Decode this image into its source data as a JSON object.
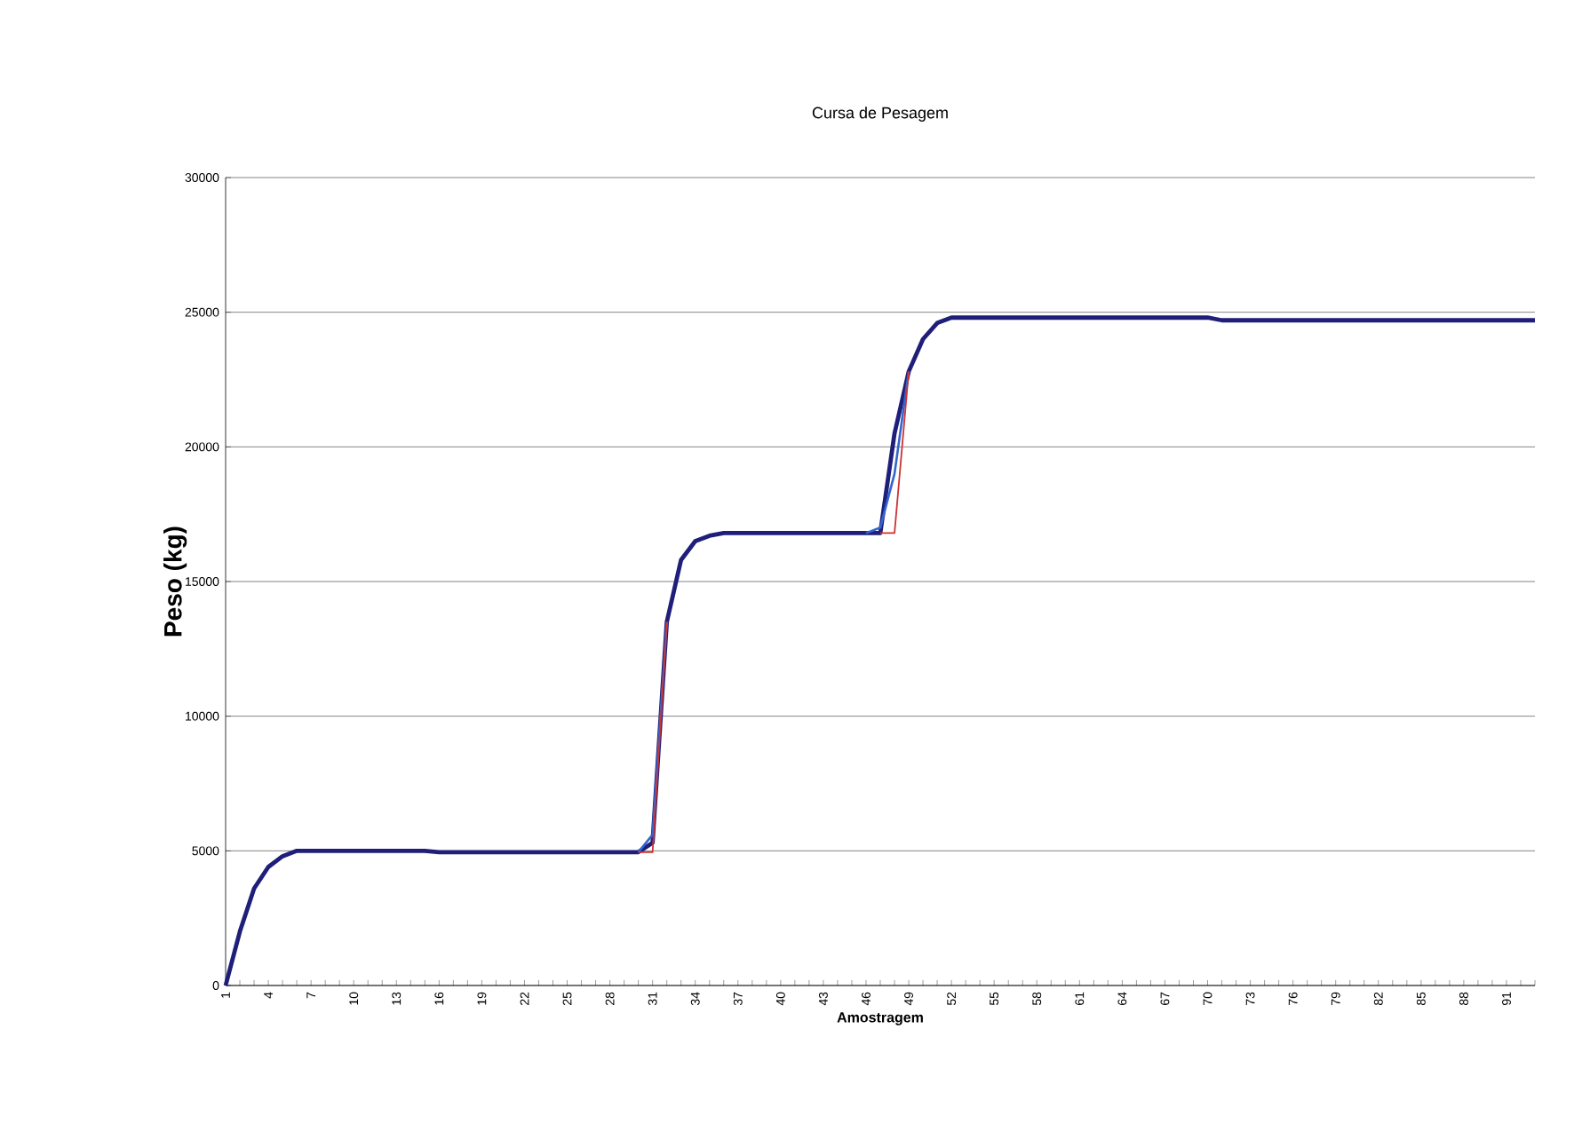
{
  "chart_data": {
    "type": "line",
    "title": "Cursa de Pesagem",
    "xlabel": "Amostragem",
    "ylabel": "Peso (kg)",
    "categories": [
      "1",
      null,
      null,
      "4",
      null,
      null,
      "7",
      null,
      null,
      "10",
      null,
      null,
      "13",
      null,
      null,
      "16",
      null,
      null,
      "19",
      null,
      null,
      "22",
      null,
      null,
      "25",
      null,
      null,
      "28",
      null,
      null,
      "31",
      null,
      null,
      "34",
      null,
      null,
      "37",
      null,
      null,
      "40",
      null,
      null,
      "43",
      null,
      null,
      "46",
      null,
      null,
      "49",
      null,
      null,
      "52",
      null,
      null,
      "55",
      null,
      null,
      "58",
      null,
      null,
      "61",
      null,
      null,
      "64",
      null,
      null,
      "67",
      null,
      null,
      "70",
      null,
      null,
      "73",
      null,
      null,
      "76",
      null,
      null,
      "79",
      null,
      null,
      "82",
      null,
      null,
      "85",
      null,
      null,
      "88",
      null,
      null,
      "91",
      null,
      null
    ],
    "series": [
      {
        "color": "#1f1f7a",
        "values": [
          0,
          2000,
          3600,
          4400,
          4800,
          5000,
          5000,
          5000,
          5000,
          5000,
          5000,
          5000,
          5000,
          5000,
          5000,
          4950,
          4950,
          4950,
          4950,
          4950,
          4950,
          4950,
          4950,
          4950,
          4950,
          4950,
          4950,
          4950,
          4950,
          4950,
          5300,
          13500,
          15800,
          16500,
          16700,
          16800,
          16800,
          16800,
          16800,
          16800,
          16800,
          16800,
          16800,
          16800,
          16800,
          16800,
          16800,
          20500,
          22800,
          24000,
          24600,
          24800,
          24800,
          24800,
          24800,
          24800,
          24800,
          24800,
          24800,
          24800,
          24800,
          24800,
          24800,
          24800,
          24800,
          24800,
          24800,
          24800,
          24800,
          24800,
          24700,
          24700,
          24700,
          24700,
          24700,
          24700,
          24700,
          24700,
          24700,
          24700,
          24700,
          24700,
          24700,
          24700,
          24700,
          24700,
          24700,
          24700,
          24700,
          24700,
          24700,
          24700,
          24700
        ]
      },
      {
        "color": "#3366cc",
        "values": [
          null,
          null,
          null,
          null,
          null,
          null,
          null,
          null,
          null,
          null,
          null,
          null,
          null,
          null,
          null,
          null,
          null,
          null,
          null,
          null,
          null,
          null,
          null,
          null,
          null,
          null,
          null,
          null,
          null,
          4950,
          5600,
          13500,
          null,
          null,
          null,
          null,
          null,
          null,
          null,
          null,
          null,
          null,
          null,
          null,
          null,
          16800,
          17000,
          19000,
          22800,
          null,
          null,
          null,
          null,
          null,
          null,
          null,
          null,
          null,
          null,
          null,
          null,
          null,
          null,
          null,
          null,
          null,
          null,
          null,
          null,
          null,
          null,
          null,
          null,
          null,
          null,
          null,
          null,
          null,
          null,
          null,
          null,
          null,
          null,
          null,
          null,
          null,
          null,
          null,
          null,
          null,
          null,
          null,
          null
        ]
      },
      {
        "color": "#cc3333",
        "values": [
          null,
          null,
          null,
          null,
          null,
          null,
          null,
          null,
          null,
          null,
          null,
          null,
          null,
          null,
          null,
          null,
          null,
          null,
          null,
          null,
          null,
          null,
          null,
          null,
          null,
          null,
          null,
          null,
          null,
          4950,
          4950,
          13500,
          null,
          null,
          null,
          null,
          null,
          null,
          null,
          null,
          null,
          null,
          null,
          null,
          null,
          null,
          16800,
          16800,
          22800,
          null,
          null,
          null,
          null,
          null,
          null,
          null,
          null,
          null,
          null,
          null,
          null,
          null,
          null,
          null,
          null,
          null,
          null,
          null,
          null,
          null,
          null,
          null,
          null,
          null,
          null,
          null,
          null,
          null,
          null,
          null,
          null,
          null,
          null,
          null,
          null,
          null,
          null,
          null,
          null,
          null,
          null,
          null,
          null
        ]
      }
    ],
    "ylim": [
      0,
      30000
    ],
    "yticks": [
      0,
      5000,
      10000,
      15000,
      20000,
      25000,
      30000
    ],
    "grid": "y",
    "legend": false,
    "marker": "none",
    "line_style": "solid"
  }
}
